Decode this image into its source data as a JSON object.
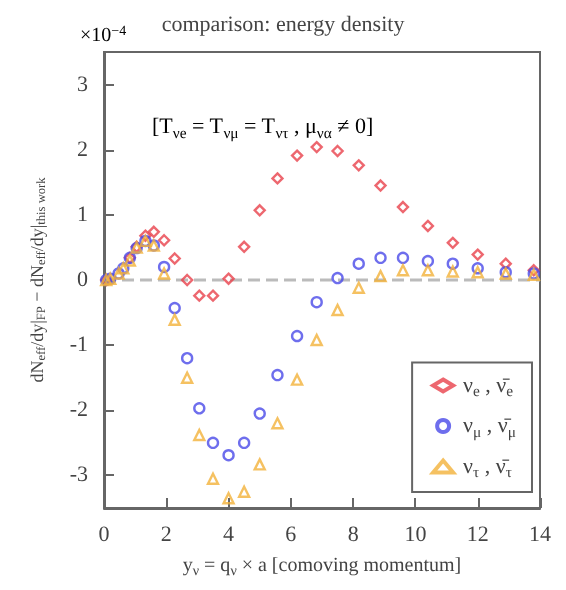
{
  "chart_data": {
    "type": "scatter",
    "title": "comparison: energy density",
    "xlabel": "y$_{ν}$ = q$_{ν}$ × a [comoving momentum]",
    "ylabel": "dN$_{eff}$/dy|$_{FP}$ − dN$_{eff}$/dy|$_{this work}$",
    "annotations": [
      "×10$^{−4}$",
      "[T$_{νe}$ = T$_{νμ}$ = T$_{ντ}$ , μ$_{να}$ ≠ 0]"
    ],
    "xlim": [
      0,
      14
    ],
    "xticks": [
      0,
      2,
      4,
      6,
      8,
      10,
      12,
      14
    ],
    "ylim": [
      -3.5,
      3.5
    ],
    "yticks": [
      -3,
      -2,
      -1,
      0,
      1,
      2,
      3
    ],
    "grid": false,
    "legend": "bottom right",
    "ref_lines": [
      {
        "axis": "y",
        "value": 0,
        "color": "#bbbbbb",
        "line_style": "dashed"
      }
    ],
    "series": [
      {
        "name": "ν$_{e}$ , ν̄$_{e}$",
        "color": "#e8414b",
        "marker": "diamond",
        "x": [
          0.07,
          0.2,
          0.47,
          0.62,
          0.83,
          1.05,
          1.33,
          1.6,
          1.93,
          2.27,
          2.67,
          3.06,
          3.5,
          4.0,
          4.5,
          5.0,
          5.57,
          6.2,
          6.83,
          7.5,
          8.18,
          8.88,
          9.6,
          10.4,
          11.2,
          12.0,
          12.9,
          13.8
        ],
        "values": [
          0,
          null,
          null,
          null,
          0.34,
          0.51,
          0.68,
          0.74,
          0.61,
          0.33,
          0,
          -0.24,
          -0.24,
          0.02,
          0.51,
          1.07,
          1.56,
          1.91,
          2.04,
          1.98,
          1.76,
          1.45,
          1.12,
          0.83,
          0.57,
          0.39,
          0.25,
          0.15
        ]
      },
      {
        "name": "ν$_{μ}$ , ν̄$_{μ}$",
        "color": "#4a4ae8",
        "marker": "circle",
        "x": [
          0.07,
          0.2,
          0.47,
          0.62,
          0.83,
          1.05,
          1.33,
          1.6,
          1.93,
          2.27,
          2.67,
          3.06,
          3.5,
          4.0,
          4.5,
          5.0,
          5.57,
          6.2,
          6.83,
          7.5,
          8.18,
          8.88,
          9.6,
          10.4,
          11.2,
          12.0,
          12.9,
          13.8
        ],
        "values": [
          0,
          0.02,
          0.1,
          0.18,
          0.34,
          0.49,
          0.6,
          0.53,
          0.2,
          -0.43,
          -1.2,
          -1.97,
          -2.5,
          -2.69,
          -2.5,
          -2.05,
          -1.46,
          -0.86,
          -0.34,
          0.03,
          0.25,
          0.34,
          0.34,
          0.29,
          0.25,
          0.18,
          0.12,
          0.1
        ]
      },
      {
        "name": "ν$_{τ}$ , ν̄$_{τ}$",
        "color": "#f2b13a",
        "marker": "triangle",
        "x": [
          0.07,
          0.2,
          0.47,
          0.62,
          0.83,
          1.05,
          1.33,
          1.6,
          1.93,
          2.27,
          2.67,
          3.06,
          3.5,
          4.0,
          4.5,
          5.0,
          5.57,
          6.2,
          6.83,
          7.5,
          8.18,
          8.88,
          9.6,
          10.4,
          11.2,
          12.0,
          12.9,
          13.8
        ],
        "values": [
          0,
          0.02,
          0.1,
          0.18,
          0.3,
          0.5,
          0.6,
          0.53,
          0.1,
          -0.61,
          -1.5,
          -2.38,
          -3.05,
          -3.35,
          -3.25,
          -2.83,
          -2.2,
          -1.53,
          -0.92,
          -0.46,
          -0.12,
          0.06,
          0.15,
          0.15,
          0.13,
          0.12,
          0.1,
          0.08
        ]
      }
    ]
  }
}
